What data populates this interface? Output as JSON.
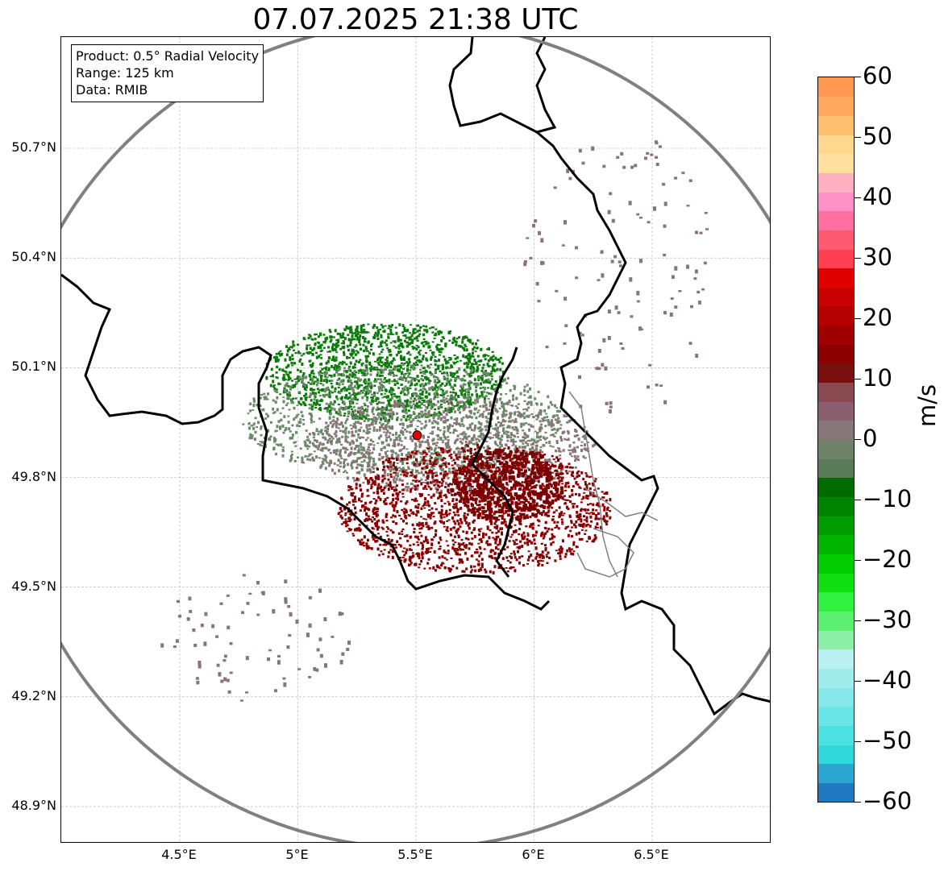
{
  "title": "07.07.2025 21:38 UTC",
  "infobox": {
    "product": "Product: 0.5° Radial Velocity",
    "range": "Range: 125 km",
    "source": "Data: RMIB"
  },
  "axes": {
    "lat_ticks": [
      {
        "value": 50.7,
        "label": "50.7°N"
      },
      {
        "value": 50.4,
        "label": "50.4°N"
      },
      {
        "value": 50.1,
        "label": "50.1°N"
      },
      {
        "value": 49.8,
        "label": "49.8°N"
      },
      {
        "value": 49.5,
        "label": "49.5°N"
      },
      {
        "value": 49.2,
        "label": "49.2°N"
      },
      {
        "value": 48.9,
        "label": "48.9°N"
      }
    ],
    "lon_ticks": [
      {
        "value": 4.5,
        "label": "4.5°E"
      },
      {
        "value": 5.0,
        "label": "5°E"
      },
      {
        "value": 5.5,
        "label": "5.5°E"
      },
      {
        "value": 6.0,
        "label": "6°E"
      },
      {
        "value": 6.5,
        "label": "6.5°E"
      }
    ],
    "lon_range": [
      4.0,
      7.0
    ],
    "lat_range": [
      48.8,
      51.0
    ],
    "grid": true
  },
  "radar_site": {
    "lon": 5.505,
    "lat": 49.915,
    "marker_color": "#e00000"
  },
  "range_ring_color": "#808080",
  "colorbar": {
    "unit": "m/s",
    "min": -60,
    "max": 60,
    "ticks": [
      {
        "value": 60,
        "label": "60"
      },
      {
        "value": 50,
        "label": "50"
      },
      {
        "value": 40,
        "label": "40"
      },
      {
        "value": 30,
        "label": "30"
      },
      {
        "value": 20,
        "label": "20"
      },
      {
        "value": 10,
        "label": "10"
      },
      {
        "value": 0,
        "label": "0"
      },
      {
        "value": -10,
        "label": "−10"
      },
      {
        "value": -20,
        "label": "−20"
      },
      {
        "value": -30,
        "label": "−30"
      },
      {
        "value": -40,
        "label": "−40"
      },
      {
        "value": -50,
        "label": "−50"
      },
      {
        "value": -60,
        "label": "−60"
      }
    ],
    "colors": [
      "#1f78c0",
      "#2aa6d0",
      "#30d8dc",
      "#4de0e0",
      "#6ae4e4",
      "#86e8e8",
      "#a0ecec",
      "#baf0f0",
      "#8ef0a8",
      "#5cf070",
      "#30f040",
      "#10e010",
      "#00cc00",
      "#00b400",
      "#009c00",
      "#008400",
      "#006c00",
      "#5a7a5a",
      "#6e826a",
      "#867878",
      "#8a6070",
      "#8a4a52",
      "#7a1010",
      "#8c0000",
      "#a00000",
      "#b40000",
      "#c80000",
      "#e00000",
      "#ff4050",
      "#ff5a70",
      "#ff70a0",
      "#ff90c8",
      "#ffb0c0",
      "#ffe0a0",
      "#ffd890",
      "#ffc070",
      "#ffa860",
      "#ff9850"
    ]
  },
  "echo_colors": {
    "approaching": "#0a7a0a",
    "approaching_light": "#6a8a68",
    "near_zero": "#8a7478",
    "receding": "#8a0000",
    "receding_dark": "#7a0000"
  }
}
